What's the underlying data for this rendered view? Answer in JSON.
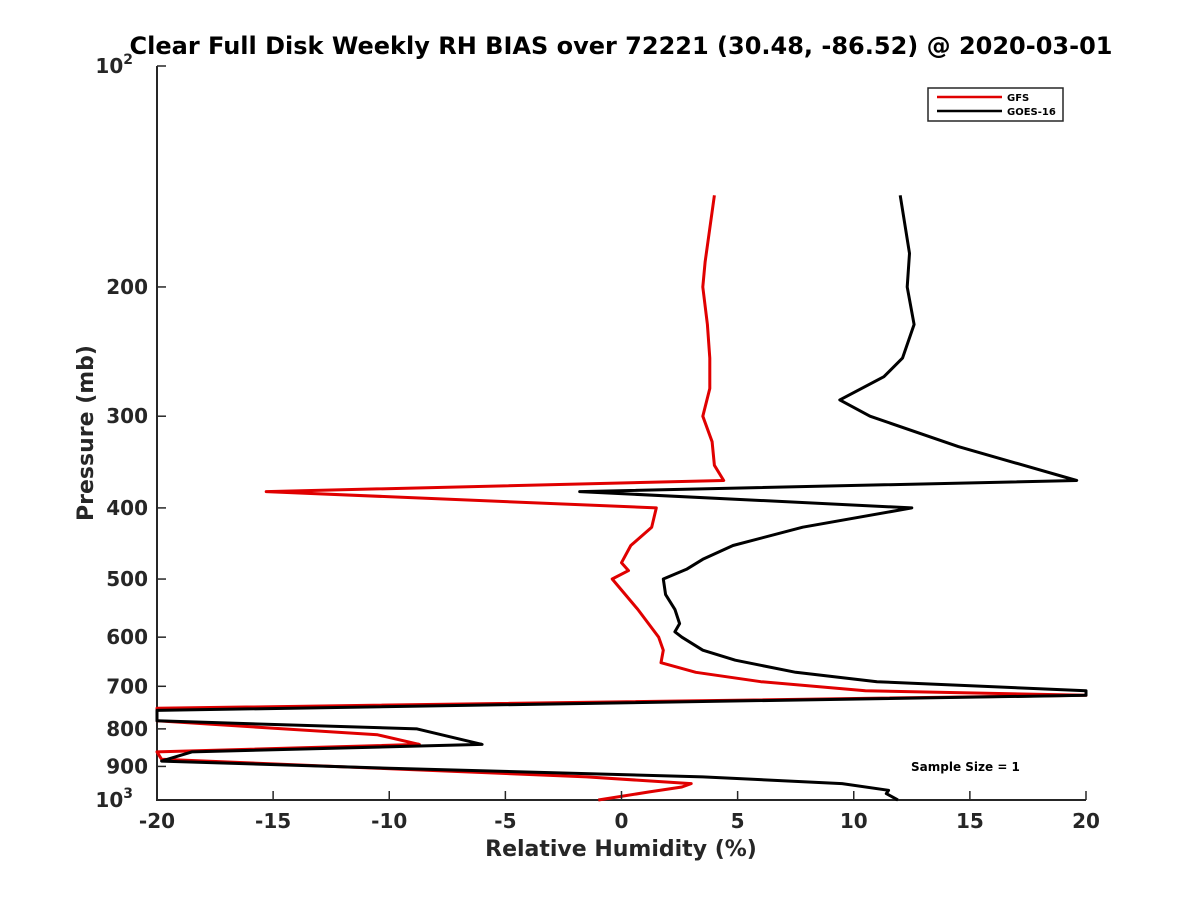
{
  "chart_data": {
    "type": "line",
    "title": "Clear Full Disk Weekly RH BIAS over 72221 (30.48, -86.52) @ 2020-03-01",
    "xlabel": "Relative Humidity (%)",
    "ylabel": "Pressure (mb)",
    "xlim": [
      -20,
      20
    ],
    "ylim": [
      100,
      1000
    ],
    "y_scale": "log",
    "y_reversed": true,
    "x_ticks": [
      "-20",
      "-15",
      "-10",
      "-5",
      "0",
      "5",
      "10",
      "15",
      "20"
    ],
    "x_tick_values": [
      -20,
      -15,
      -10,
      -5,
      0,
      5,
      10,
      15,
      20
    ],
    "y_ticks": [
      {
        "value": 100,
        "base": "10",
        "exp": "2"
      },
      {
        "value": 200,
        "label": "200"
      },
      {
        "value": 300,
        "label": "300"
      },
      {
        "value": 400,
        "label": "400"
      },
      {
        "value": 500,
        "label": "500"
      },
      {
        "value": 600,
        "label": "600"
      },
      {
        "value": 700,
        "label": "700"
      },
      {
        "value": 800,
        "label": "800"
      },
      {
        "value": 900,
        "label": "900"
      },
      {
        "value": 1000,
        "base": "10",
        "exp": "3"
      }
    ],
    "grid": false,
    "legend_position": "top-right",
    "annotation": "Sample Size = 1",
    "series": [
      {
        "name": "GFS",
        "color": "#e00000",
        "points": [
          [
            4.0,
            150
          ],
          [
            3.6,
            185
          ],
          [
            3.5,
            200
          ],
          [
            3.7,
            225
          ],
          [
            3.8,
            250
          ],
          [
            3.8,
            275
          ],
          [
            3.5,
            300
          ],
          [
            3.9,
            325
          ],
          [
            4.0,
            350
          ],
          [
            4.4,
            367
          ],
          [
            -15.3,
            380
          ],
          [
            1.5,
            400
          ],
          [
            1.3,
            425
          ],
          [
            0.4,
            450
          ],
          [
            0,
            475
          ],
          [
            0.3,
            487
          ],
          [
            -0.4,
            500
          ],
          [
            0.7,
            550
          ],
          [
            1.6,
            600
          ],
          [
            1.8,
            625
          ],
          [
            1.7,
            650
          ],
          [
            3.2,
            670
          ],
          [
            6.0,
            690
          ],
          [
            10.5,
            710
          ],
          [
            20,
            720
          ],
          [
            -20,
            750
          ],
          [
            -20,
            780
          ],
          [
            -10.5,
            815
          ],
          [
            -8.7,
            840
          ],
          [
            -20,
            860
          ],
          [
            -19.8,
            880
          ],
          [
            -10.5,
            905
          ],
          [
            -1.5,
            930
          ],
          [
            3.0,
            950
          ],
          [
            2.6,
            960
          ],
          [
            1.2,
            975
          ],
          [
            -1.0,
            1000
          ]
        ]
      },
      {
        "name": "GOES-16",
        "color": "#000000",
        "points": [
          [
            12.0,
            150
          ],
          [
            12.4,
            180
          ],
          [
            12.3,
            200
          ],
          [
            12.6,
            225
          ],
          [
            12.1,
            250
          ],
          [
            11.3,
            265
          ],
          [
            9.4,
            285
          ],
          [
            10.7,
            300
          ],
          [
            14.5,
            330
          ],
          [
            19.6,
            367
          ],
          [
            -1.8,
            380
          ],
          [
            12.5,
            400
          ],
          [
            7.8,
            425
          ],
          [
            4.8,
            450
          ],
          [
            3.5,
            470
          ],
          [
            2.8,
            485
          ],
          [
            1.8,
            500
          ],
          [
            1.9,
            525
          ],
          [
            2.3,
            550
          ],
          [
            2.5,
            575
          ],
          [
            2.3,
            590
          ],
          [
            2.6,
            600
          ],
          [
            3.5,
            625
          ],
          [
            4.9,
            645
          ],
          [
            7.5,
            670
          ],
          [
            11,
            690
          ],
          [
            20,
            710
          ],
          [
            20,
            720
          ],
          [
            -20,
            755
          ],
          [
            -20,
            780
          ],
          [
            -8.8,
            800
          ],
          [
            -6.0,
            840
          ],
          [
            -18.5,
            860
          ],
          [
            -19.8,
            885
          ],
          [
            -10.0,
            905
          ],
          [
            3.5,
            930
          ],
          [
            9.5,
            950
          ],
          [
            11.5,
            970
          ],
          [
            11.4,
            980
          ],
          [
            11.9,
            1000
          ]
        ]
      }
    ]
  }
}
